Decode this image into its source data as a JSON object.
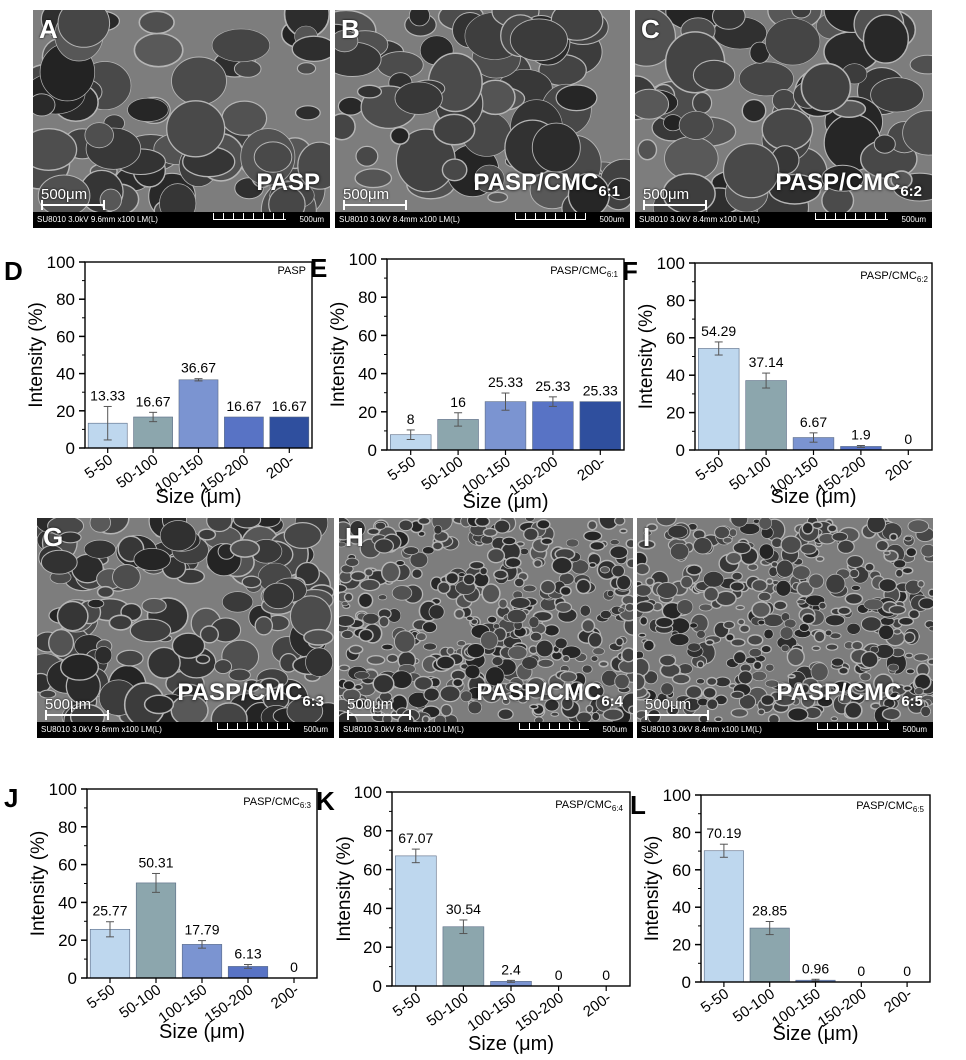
{
  "sem_panels": [
    {
      "letter": "A",
      "sample": "PASP",
      "sub": "",
      "scale": "500μm",
      "info_left": "SU8010 3.0kV 9.6mm x100 LM(L)",
      "info_right": "500um"
    },
    {
      "letter": "B",
      "sample": "PASP/CMC",
      "sub": "6:1",
      "scale": "500μm",
      "info_left": "SU8010 3.0kV 8.4mm x100 LM(L)",
      "info_right": "500um"
    },
    {
      "letter": "C",
      "sample": "PASP/CMC",
      "sub": "6:2",
      "scale": "500μm",
      "info_left": "SU8010 3.0kV 8.4mm x100 LM(L)",
      "info_right": "500um"
    },
    {
      "letter": "G",
      "sample": "PASP/CMC",
      "sub": "6:3",
      "scale": "500μm",
      "info_left": "SU8010 3.0kV 9.6mm x100 LM(L)",
      "info_right": "500um"
    },
    {
      "letter": "H",
      "sample": "PASP/CMC",
      "sub": "6:4",
      "scale": "500μm",
      "info_left": "SU8010 3.0kV 8.4mm x100 LM(L)",
      "info_right": "500um"
    },
    {
      "letter": "I",
      "sample": "PASP/CMC",
      "sub": "6:5",
      "scale": "500μm",
      "info_left": "SU8010 3.0kV 8.4mm x100 LM(L)",
      "info_right": "500um"
    }
  ],
  "colors": [
    "#bed7ee",
    "#8ca6ad",
    "#7b94d1",
    "#5873c5",
    "#2f4f9e"
  ],
  "chart_data": [
    {
      "letter": "D",
      "type": "bar",
      "legend": "PASP",
      "legend_sub": "",
      "xlabel": "Size (μm)",
      "ylabel": "Intensity (%)",
      "ylim": [
        0,
        100
      ],
      "yticks": [
        "0",
        "20",
        "40",
        "60",
        "80",
        "100"
      ],
      "categories": [
        "5-50",
        "50-100",
        "100-150",
        "150-200",
        "200-"
      ],
      "values": [
        13.33,
        16.67,
        36.67,
        16.67,
        16.67
      ],
      "labels": [
        "13.33",
        "16.67",
        "36.67",
        "16.67",
        "16.67"
      ],
      "errors": [
        9,
        2.5,
        0.6,
        0,
        0
      ]
    },
    {
      "letter": "E",
      "type": "bar",
      "legend": "PASP/CMC",
      "legend_sub": "6:1",
      "xlabel": "Size (μm)",
      "ylabel": "Intensity (%)",
      "ylim": [
        0,
        100
      ],
      "yticks": [
        "0",
        "20",
        "40",
        "60",
        "80",
        "100"
      ],
      "categories": [
        "5-50",
        "50-100",
        "100-150",
        "150-200",
        "200-"
      ],
      "values": [
        8,
        16,
        25.33,
        25.33,
        25.33
      ],
      "labels": [
        "8",
        "16",
        "25.33",
        "25.33",
        "25.33"
      ],
      "errors": [
        2.5,
        3.5,
        4.5,
        2.5,
        0
      ]
    },
    {
      "letter": "F",
      "type": "bar",
      "legend": "PASP/CMC",
      "legend_sub": "6:2",
      "xlabel": "Size (μm)",
      "ylabel": "Intensity (%)",
      "ylim": [
        0,
        100
      ],
      "yticks": [
        "0",
        "20",
        "40",
        "60",
        "80",
        "100"
      ],
      "categories": [
        "5-50",
        "50-100",
        "100-150",
        "150-200",
        "200-"
      ],
      "values": [
        54.29,
        37.14,
        6.67,
        1.9,
        0
      ],
      "labels": [
        "54.29",
        "37.14",
        "6.67",
        "1.9",
        "0"
      ],
      "errors": [
        3.5,
        4,
        2.5,
        0.5,
        0
      ]
    },
    {
      "letter": "J",
      "type": "bar",
      "legend": "PASP/CMC",
      "legend_sub": "6:3",
      "xlabel": "Size (μm)",
      "ylabel": "Intensity (%)",
      "ylim": [
        0,
        100
      ],
      "yticks": [
        "0",
        "20",
        "40",
        "60",
        "80",
        "100"
      ],
      "categories": [
        "5-50",
        "50-100",
        "100-150",
        "150-200",
        "200-"
      ],
      "values": [
        25.77,
        50.31,
        17.79,
        6.13,
        0
      ],
      "labels": [
        "25.77",
        "50.31",
        "17.79",
        "6.13",
        "0"
      ],
      "errors": [
        4,
        5,
        2,
        1,
        0
      ]
    },
    {
      "letter": "K",
      "type": "bar",
      "legend": "PASP/CMC",
      "legend_sub": "6:4",
      "xlabel": "Size (μm)",
      "ylabel": "Intensity (%)",
      "ylim": [
        0,
        100
      ],
      "yticks": [
        "0",
        "20",
        "40",
        "60",
        "80",
        "100"
      ],
      "categories": [
        "5-50",
        "50-100",
        "100-150",
        "150-200",
        "200-"
      ],
      "values": [
        67.07,
        30.54,
        2.4,
        0,
        0
      ],
      "labels": [
        "67.07",
        "30.54",
        "2.4",
        "0",
        "0"
      ],
      "errors": [
        3.5,
        3.5,
        0.5,
        0,
        0
      ]
    },
    {
      "letter": "L",
      "type": "bar",
      "legend": "PASP/CMC",
      "legend_sub": "6:5",
      "xlabel": "Size (μm)",
      "ylabel": "Intensity (%)",
      "ylim": [
        0,
        100
      ],
      "yticks": [
        "0",
        "20",
        "40",
        "60",
        "80",
        "100"
      ],
      "categories": [
        "5-50",
        "50-100",
        "100-150",
        "150-200",
        "200-"
      ],
      "values": [
        70.19,
        28.85,
        0.96,
        0,
        0
      ],
      "labels": [
        "70.19",
        "28.85",
        "0.96",
        "0",
        "0"
      ],
      "errors": [
        3.5,
        3.5,
        0.5,
        0,
        0
      ]
    }
  ]
}
